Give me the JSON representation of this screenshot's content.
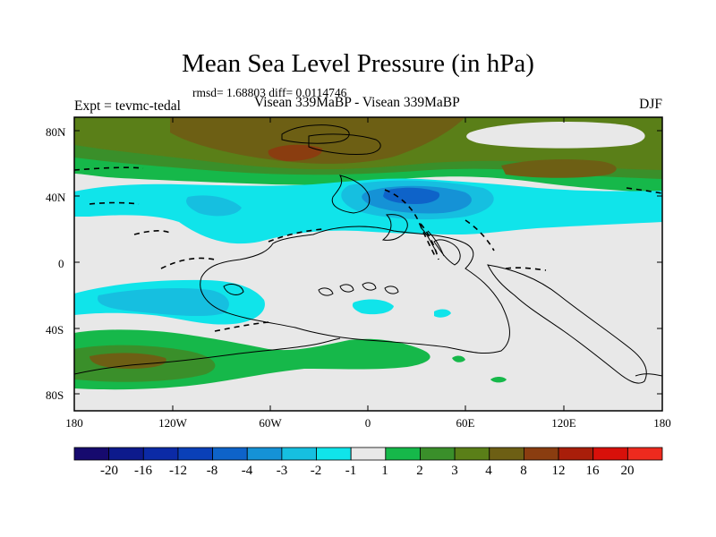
{
  "title": "Mean Sea Level Pressure (in hPa)",
  "stats": "rmsd= 1.68803 diff= 0.0114746",
  "left_label": "Expt = tevmc-tedal",
  "center_label": "Visean 339MaBP - Visean 339MaBP",
  "season": "DJF",
  "lat_ticks": [
    "80N",
    "40N",
    "0",
    "40S",
    "80S"
  ],
  "lon_ticks": [
    "180",
    "120W",
    "60W",
    "0",
    "60E",
    "120E",
    "180"
  ],
  "colorbar": {
    "labels": [
      "-20",
      "-16",
      "-12",
      "-8",
      "-4",
      "-3",
      "-2",
      "-1",
      "1",
      "2",
      "3",
      "4",
      "8",
      "12",
      "16",
      "20"
    ],
    "colors": [
      "#160a6e",
      "#0d1a8c",
      "#0b2aa6",
      "#0a40b8",
      "#0e63c9",
      "#1592d6",
      "#16bfe0",
      "#10e4ea",
      "#e8e8e8",
      "#16b84a",
      "#3a8f2a",
      "#5a7f18",
      "#6d5f14",
      "#8a3d10",
      "#a91e0a",
      "#d8100a",
      "#ee2a1e"
    ]
  },
  "map_colors": {
    "neutral": "#e8e8e8",
    "pos2": "#16b84a",
    "pos3": "#3a8f2a",
    "pos4": "#5a7f18",
    "pos8": "#6d5f14",
    "pos12": "#8a3d10",
    "neg1": "#10e4ea",
    "neg2": "#16bfe0",
    "neg3": "#1592d6",
    "neg4": "#0e63c9"
  }
}
